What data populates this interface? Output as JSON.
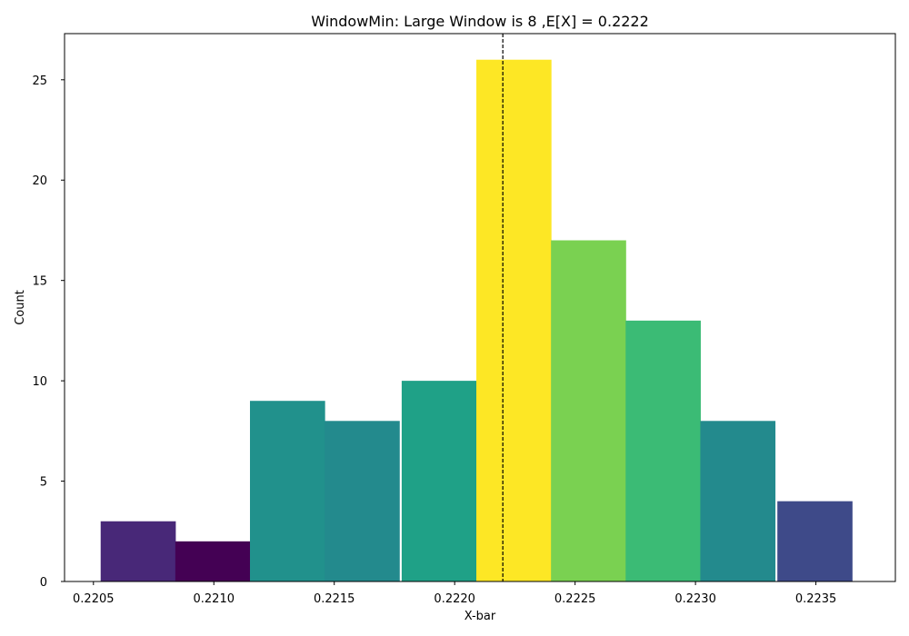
{
  "chart_data": {
    "type": "bar",
    "title": "WindowMin: Large Window is 8 ,E[X] = 0.2222",
    "xlabel": "X-bar",
    "ylabel": "Count",
    "xlim": [
      0.22038,
      0.22383
    ],
    "ylim": [
      0,
      27.3
    ],
    "xticks": [
      0.2205,
      0.221,
      0.2215,
      0.222,
      0.2225,
      0.223,
      0.2235
    ],
    "xtick_labels": [
      "0.2205",
      "0.2210",
      "0.2215",
      "0.2220",
      "0.2225",
      "0.2230",
      "0.2235"
    ],
    "yticks": [
      0,
      5,
      10,
      15,
      20,
      25
    ],
    "ytick_labels": [
      "0",
      "5",
      "10",
      "15",
      "20",
      "25"
    ],
    "bin_width": 0.000312,
    "bins": [
      {
        "left": 0.22053,
        "value": 3,
        "color": "#482878"
      },
      {
        "left": 0.22084,
        "value": 2,
        "color": "#440154"
      },
      {
        "left": 0.22115,
        "value": 9,
        "color": "#21918c"
      },
      {
        "left": 0.22146,
        "value": 8,
        "color": "#238a8d"
      },
      {
        "left": 0.22178,
        "value": 10,
        "color": "#1fa187"
      },
      {
        "left": 0.22209,
        "value": 26,
        "color": "#fde725"
      },
      {
        "left": 0.2224,
        "value": 17,
        "color": "#7ad151"
      },
      {
        "left": 0.22271,
        "value": 13,
        "color": "#3bbb75"
      },
      {
        "left": 0.22302,
        "value": 8,
        "color": "#238a8d"
      },
      {
        "left": 0.22334,
        "value": 4,
        "color": "#3e4a89"
      }
    ],
    "mean_line": {
      "x": 0.2222,
      "style": "dashed",
      "color": "#000000"
    },
    "grid": false
  }
}
